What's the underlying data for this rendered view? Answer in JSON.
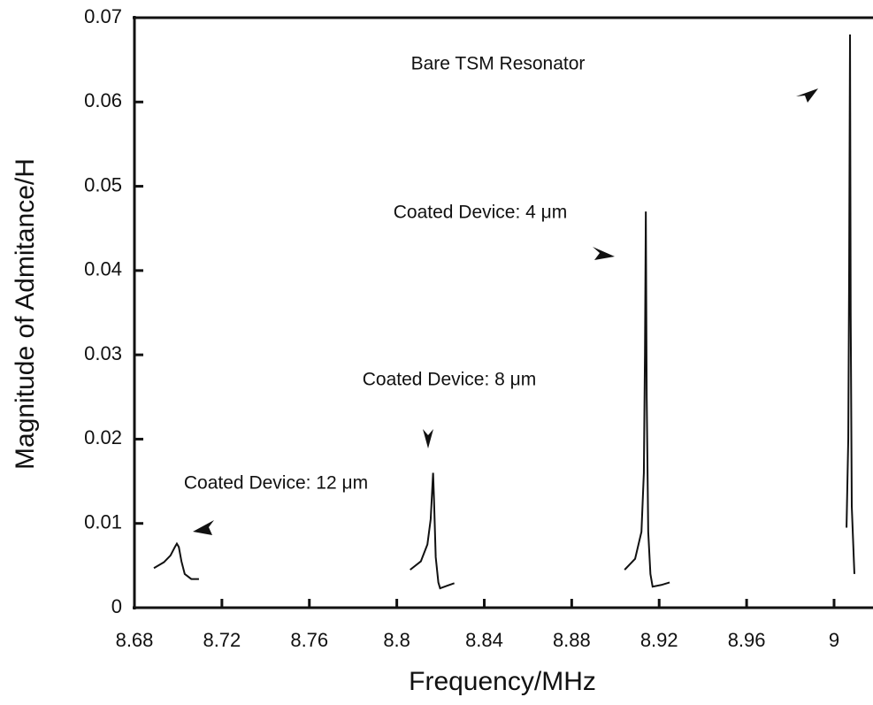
{
  "chart_data": {
    "type": "line",
    "xlabel": "Frequency/MHz",
    "ylabel": "Magnitude of Admitance/H",
    "xlim": [
      8.68,
      9.017
    ],
    "ylim": [
      0,
      0.07
    ],
    "xticks": [
      8.68,
      8.72,
      8.76,
      8.8,
      8.84,
      8.88,
      8.92,
      8.96,
      9
    ],
    "yticks": [
      0,
      0.01,
      0.02,
      0.03,
      0.04,
      0.05,
      0.06,
      0.07
    ],
    "annotations": [
      "Coated Device: 12 μm",
      "Coated Device: 8 μm",
      "Coated Device: 4 μm",
      "Bare TSM Resonator"
    ],
    "series": [
      {
        "color": "#111111",
        "x": [
          8.6889,
          8.6935,
          8.6965,
          8.6985,
          8.6994,
          8.7003,
          8.7015,
          8.703,
          8.706,
          8.7095
        ],
        "values": [
          0.0047,
          0.0054,
          0.0062,
          0.0072,
          0.0076,
          0.0072,
          0.0055,
          0.004,
          0.0034,
          0.0034
        ]
      },
      {
        "color": "#111111",
        "x": [
          8.8061,
          8.811,
          8.814,
          8.8155,
          8.8162,
          8.8166,
          8.817,
          8.8178,
          8.819,
          8.8198,
          8.823,
          8.8263
        ],
        "values": [
          0.0045,
          0.0055,
          0.0075,
          0.0105,
          0.014,
          0.016,
          0.013,
          0.006,
          0.003,
          0.0023,
          0.0026,
          0.0029
        ]
      },
      {
        "color": "#111111",
        "x": [
          8.9042,
          8.909,
          8.9119,
          8.913,
          8.9135,
          8.9139,
          8.9143,
          8.915,
          8.916,
          8.917,
          8.921,
          8.9248
        ],
        "values": [
          0.0045,
          0.0058,
          0.009,
          0.016,
          0.03,
          0.047,
          0.025,
          0.009,
          0.004,
          0.0025,
          0.0027,
          0.003
        ]
      },
      {
        "color": "#111111",
        "x": [
          9.0057,
          9.0065,
          9.0069,
          9.0073,
          9.0076,
          9.0081,
          9.0093
        ],
        "values": [
          0.0095,
          0.02,
          0.04,
          0.068,
          0.035,
          0.012,
          0.004
        ]
      }
    ]
  }
}
